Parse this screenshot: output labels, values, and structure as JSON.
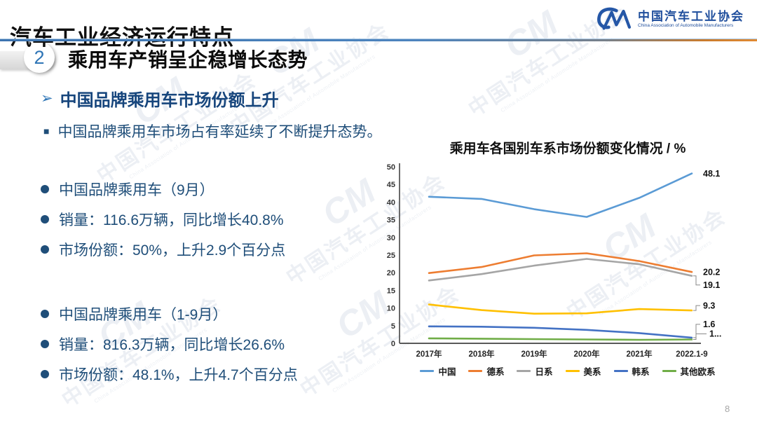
{
  "header": {
    "title": "汽车工业经济运行特点",
    "logo": {
      "mark": "CM",
      "name_cn": "中国汽车工业协会",
      "name_en": "China Association of Automobile Manufacturers"
    }
  },
  "section": {
    "number": "2",
    "heading": "乘用车产销呈企稳增长态势"
  },
  "subsection": {
    "bullet": "➢",
    "title": "中国品牌乘用车市场份额上升",
    "note_bullet": "■",
    "note": "中国品牌乘用车市场占有率延续了不断提升态势。"
  },
  "stats_blocks": [
    {
      "items": [
        "中国品牌乘用车（9月）",
        "销量：116.6万辆，同比增长40.8%",
        "市场份额：50%，上升2.9个百分点"
      ]
    },
    {
      "items": [
        "中国品牌乘用车（1-9月）",
        "销量：816.3万辆，同比增长26.6%",
        "市场份额：48.1%，上升4.7个百分点"
      ]
    }
  ],
  "watermark": {
    "mark": "CM",
    "text": "中国汽车工业协会",
    "subtext": "China Association of Automobile Manufacturers"
  },
  "page_number": "8",
  "chart_data": {
    "type": "line",
    "title": "乘用车各国别车系市场份额变化情况 / %",
    "categories": [
      "2017年",
      "2018年",
      "2019年",
      "2020年",
      "2021年",
      "2022.1-9"
    ],
    "series": [
      {
        "name": "中国",
        "color": "#5B9BD5",
        "values": [
          41.5,
          40.9,
          38.0,
          35.8,
          41.2,
          48.1
        ],
        "end_label": "48.1"
      },
      {
        "name": "德系",
        "color": "#ED7D31",
        "values": [
          19.9,
          21.6,
          24.9,
          25.5,
          23.3,
          20.2
        ],
        "end_label": "20.2"
      },
      {
        "name": "日系",
        "color": "#A5A5A5",
        "values": [
          17.8,
          19.6,
          22.0,
          23.9,
          22.4,
          19.1
        ],
        "end_label": "19.1"
      },
      {
        "name": "美系",
        "color": "#FFC000",
        "values": [
          11.0,
          9.4,
          8.4,
          8.5,
          9.7,
          9.3
        ],
        "end_label": "9.3"
      },
      {
        "name": "韩系",
        "color": "#4472C4",
        "values": [
          4.8,
          4.7,
          4.4,
          3.8,
          2.9,
          1.6
        ],
        "end_label": "1.6"
      },
      {
        "name": "其他欧系",
        "color": "#70AD47",
        "values": [
          1.4,
          1.3,
          1.2,
          1.1,
          1.0,
          1.1
        ],
        "end_label": "1..."
      }
    ],
    "ylim": [
      0,
      50
    ],
    "ytick_step": 5,
    "grid": false,
    "legend_position": "bottom"
  }
}
